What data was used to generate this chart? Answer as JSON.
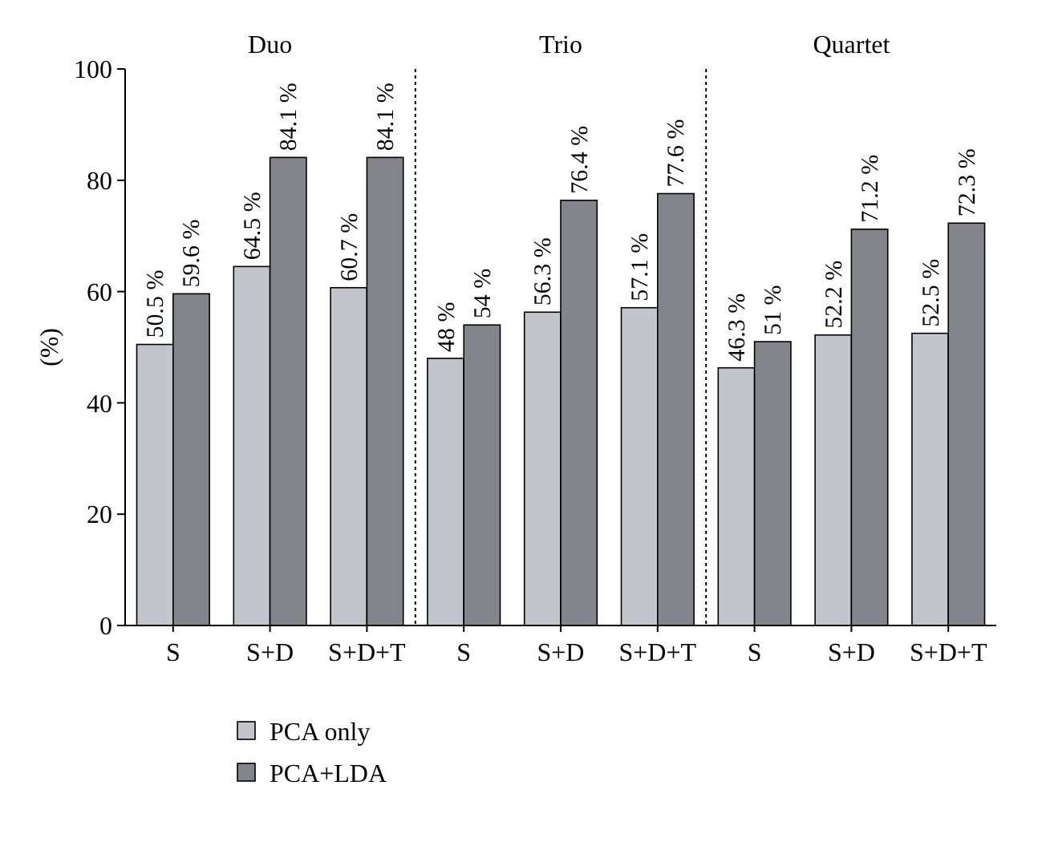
{
  "chart_data": {
    "type": "bar",
    "ylabel": "(%)",
    "categories": [
      "S",
      "S+D",
      "S+D+T",
      "S",
      "S+D",
      "S+D+T",
      "S",
      "S+D",
      "S+D+T"
    ],
    "series": [
      {
        "name": "PCA only",
        "color": "#c4c4cc",
        "values": [
          50.5,
          64.5,
          60.7,
          48,
          56.3,
          57.1,
          46.3,
          52.2,
          52.5
        ],
        "value_labels": [
          "50.5 %",
          "64.5 %",
          "60.7 %",
          "48 %",
          "56.3 %",
          "57.1 %",
          "46.3 %",
          "52.2 %",
          "52.5 %"
        ]
      },
      {
        "name": "PCA+LDA",
        "color": "#84848c",
        "values": [
          59.6,
          84.1,
          84.1,
          54,
          76.4,
          77.6,
          51,
          71.2,
          72.3
        ],
        "value_labels": [
          "59.6 %",
          "84.1 %",
          "84.1 %",
          "54 %",
          "76.4 %",
          "77.6 %",
          "51 %",
          "71.2 %",
          "72.3 %"
        ]
      }
    ],
    "annotations": [
      "Duo",
      "Trio",
      "Quartet"
    ],
    "ylim": [
      0,
      100
    ],
    "yticks": [
      0,
      20,
      40,
      60,
      80,
      100
    ],
    "grid": false,
    "legend": "bottom left"
  }
}
